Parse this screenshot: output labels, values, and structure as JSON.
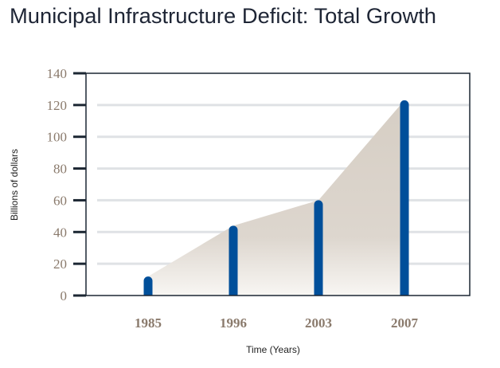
{
  "chart_data": {
    "type": "bar",
    "title": "Municipal Infrastructure Deficit: Total Growth",
    "xlabel": "Time (Years)",
    "ylabel": "Billions of dollars",
    "categories": [
      "1985",
      "1996",
      "2003",
      "2007"
    ],
    "values": [
      12,
      44,
      60,
      123
    ],
    "ylim": [
      0,
      140
    ],
    "yticks": [
      0,
      20,
      40,
      60,
      80,
      100,
      120,
      140
    ],
    "grid": true,
    "area_fill_under_bars": true,
    "colors": {
      "bar": "#004f9a",
      "area_top": "#d6cec4",
      "area_bottom": "#f7f5f2",
      "grid": "#dfe2e5",
      "axis": "#1c2733",
      "tick_label": "#8a7a6c"
    }
  }
}
